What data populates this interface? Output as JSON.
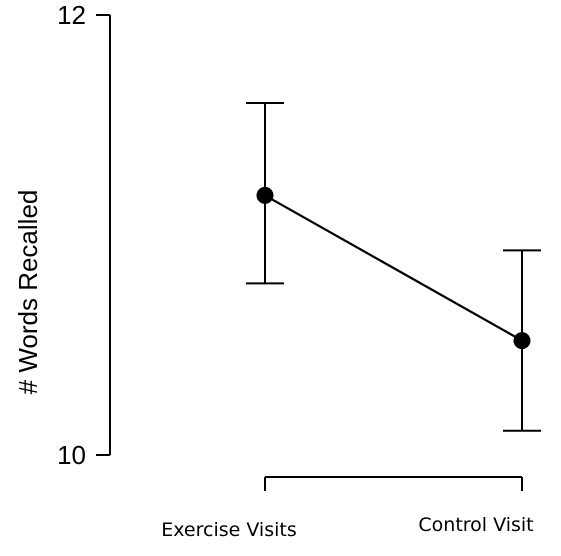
{
  "chart_data": {
    "type": "line",
    "title": "",
    "xlabel": "",
    "ylabel": "# Words Recalled",
    "ylim": [
      10,
      12
    ],
    "yticks": [
      "10",
      "12"
    ],
    "categories": [
      "Exercise Visits",
      "Control Visit"
    ],
    "series": [
      {
        "values": [
          11.18,
          10.52
        ],
        "error_low": [
          10.78,
          10.11
        ],
        "error_high": [
          11.6,
          10.93
        ]
      }
    ],
    "grid": false,
    "error_bars": true
  }
}
